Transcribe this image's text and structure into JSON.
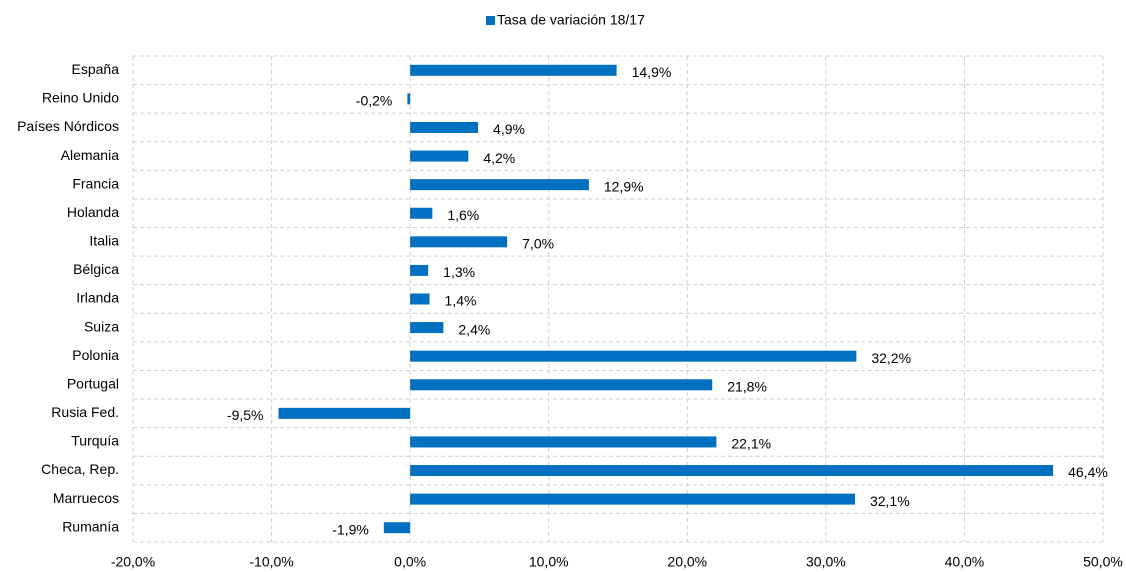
{
  "chart_data": {
    "type": "bar",
    "orientation": "horizontal",
    "categories": [
      "España",
      "Reino Unido",
      "Países Nórdicos",
      "Alemania",
      "Francia",
      "Holanda",
      "Italia",
      "Bélgica",
      "Irlanda",
      "Suiza",
      "Polonia",
      "Portugal",
      "Rusia Fed.",
      "Turquía",
      "Checa, Rep.",
      "Marruecos",
      "Rumanía"
    ],
    "series": [
      {
        "name": "Tasa de variación 18/17",
        "color": "#0070c0",
        "values": [
          14.9,
          -0.2,
          4.9,
          4.2,
          12.9,
          1.6,
          7.0,
          1.3,
          1.4,
          2.4,
          32.2,
          21.8,
          -9.5,
          22.1,
          46.4,
          32.1,
          -1.9
        ],
        "value_labels": [
          "14,9%",
          "-0,2%",
          "4,9%",
          "4,2%",
          "12,9%",
          "1,6%",
          "7,0%",
          "1,3%",
          "1,4%",
          "2,4%",
          "32,2%",
          "21,8%",
          "-9,5%",
          "22,1%",
          "46,4%",
          "32,1%",
          "-1,9%"
        ]
      }
    ],
    "xlim": [
      -20,
      50
    ],
    "xticks": [
      {
        "value": -20,
        "label": "-20,0%"
      },
      {
        "value": -10,
        "label": "-10,0%"
      },
      {
        "value": 0,
        "label": "0,0%"
      },
      {
        "value": 10,
        "label": "10,0%"
      },
      {
        "value": 20,
        "label": "20,0%"
      },
      {
        "value": 30,
        "label": "30,0%"
      },
      {
        "value": 40,
        "label": "40,0%"
      },
      {
        "value": 50,
        "label": "50,0%"
      }
    ],
    "grid": true,
    "legend": "top"
  }
}
